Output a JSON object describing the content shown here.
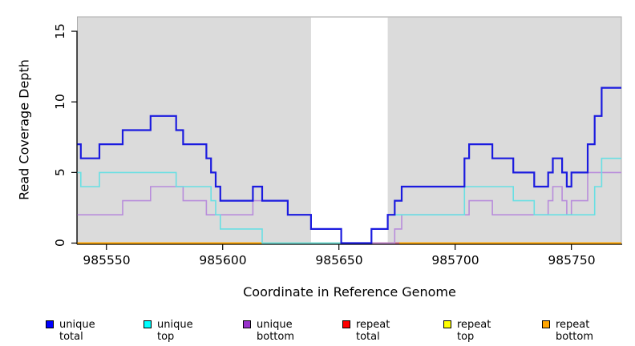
{
  "y_axis": {
    "label": "Read Coverage Depth",
    "ticks": [
      "0",
      "5",
      "10",
      "15"
    ]
  },
  "x_axis": {
    "label": "Coordinate in Reference Genome",
    "ticks": [
      "985550",
      "985600",
      "985650",
      "985700",
      "985750"
    ]
  },
  "legend": {
    "items": [
      {
        "label": "unique total",
        "color": "#0000FF"
      },
      {
        "label": "unique top",
        "color": "#00FFFF"
      },
      {
        "label": "unique bottom",
        "color": "#9932CC"
      },
      {
        "label": "repeat total",
        "color": "#FF0000"
      },
      {
        "label": "repeat top",
        "color": "#FFFF00"
      },
      {
        "label": "repeat bottom",
        "color": "#FFA500"
      }
    ]
  },
  "chart_data": {
    "type": "line",
    "step": "after",
    "title": "",
    "xlabel": "Coordinate in Reference Genome",
    "ylabel": "Read Coverage Depth",
    "xlim": [
      985537.5,
      985771.5
    ],
    "ylim": [
      0,
      16
    ],
    "x_ticks": [
      985550,
      985600,
      985650,
      985700,
      985750
    ],
    "y_ticks": [
      0,
      5,
      10,
      15
    ],
    "grid": false,
    "legend_position": "bottom",
    "plot_bg": "#DBDBDB",
    "plot_border": "#ABABAB",
    "highlight_band": {
      "x0": 985638,
      "x1": 985671,
      "color": "#FFFFFF",
      "note": "white masked region"
    },
    "series": [
      {
        "name": "repeat total",
        "line_color": "#FF0000",
        "width": 1.4,
        "points": [
          [
            985537.5,
            0
          ]
        ]
      },
      {
        "name": "repeat top",
        "line_color": "#FFFF00",
        "width": 1.4,
        "points": [
          [
            985537.5,
            0
          ]
        ]
      },
      {
        "name": "repeat bottom",
        "line_color": "#FFA500",
        "width": 1.9,
        "points": [
          [
            985537.5,
            0
          ]
        ]
      },
      {
        "name": "unique bottom",
        "line_color": "#B88CDB",
        "width": 1.6,
        "points": [
          [
            985537.5,
            2
          ],
          [
            985557,
            3
          ],
          [
            985569,
            4
          ],
          [
            985583,
            3
          ],
          [
            985593,
            2
          ],
          [
            985613,
            3
          ],
          [
            985628,
            2
          ],
          [
            985638,
            1
          ],
          [
            985651,
            0
          ],
          [
            985674,
            1
          ],
          [
            985677,
            2
          ],
          [
            985706,
            3
          ],
          [
            985716,
            2
          ],
          [
            985740,
            3
          ],
          [
            985742,
            4
          ],
          [
            985746,
            3
          ],
          [
            985748,
            2
          ],
          [
            985750,
            3
          ],
          [
            985757,
            5
          ]
        ]
      },
      {
        "name": "unique top",
        "line_color": "#69DFE3",
        "width": 1.6,
        "points": [
          [
            985537.5,
            5
          ],
          [
            985539,
            4
          ],
          [
            985547,
            5
          ],
          [
            985580,
            4
          ],
          [
            985595,
            3
          ],
          [
            985597,
            2
          ],
          [
            985599,
            1
          ],
          [
            985617,
            0
          ],
          [
            985664,
            1
          ],
          [
            985671,
            2
          ],
          [
            985704,
            4
          ],
          [
            985725,
            3
          ],
          [
            985734,
            2
          ],
          [
            985760,
            4
          ],
          [
            985763,
            6
          ]
        ]
      },
      {
        "name": "unique total",
        "line_color": "#1B1BDF",
        "width": 2.2,
        "points": [
          [
            985537.5,
            7
          ],
          [
            985539,
            6
          ],
          [
            985547,
            7
          ],
          [
            985557,
            8
          ],
          [
            985569,
            9
          ],
          [
            985580,
            8
          ],
          [
            985583,
            7
          ],
          [
            985593,
            6
          ],
          [
            985595,
            5
          ],
          [
            985597,
            4
          ],
          [
            985599,
            3
          ],
          [
            985613,
            4
          ],
          [
            985617,
            3
          ],
          [
            985628,
            2
          ],
          [
            985638,
            1
          ],
          [
            985651,
            0
          ],
          [
            985664,
            1
          ],
          [
            985671,
            2
          ],
          [
            985674,
            3
          ],
          [
            985677,
            4
          ],
          [
            985704,
            6
          ],
          [
            985706,
            7
          ],
          [
            985716,
            6
          ],
          [
            985725,
            5
          ],
          [
            985734,
            4
          ],
          [
            985740,
            5
          ],
          [
            985742,
            6
          ],
          [
            985746,
            5
          ],
          [
            985748,
            4
          ],
          [
            985750,
            5
          ],
          [
            985757,
            7
          ],
          [
            985760,
            9
          ],
          [
            985763,
            11
          ]
        ]
      }
    ],
    "baseline_blend_segments": [
      {
        "x0": 985617,
        "x1": 985651,
        "color": "#8FCF9A"
      },
      {
        "x0": 985651,
        "x1": 985664,
        "color": "#A09AE8"
      },
      {
        "x0": 985664,
        "x1": 985676,
        "color": "#D0697E"
      }
    ]
  }
}
